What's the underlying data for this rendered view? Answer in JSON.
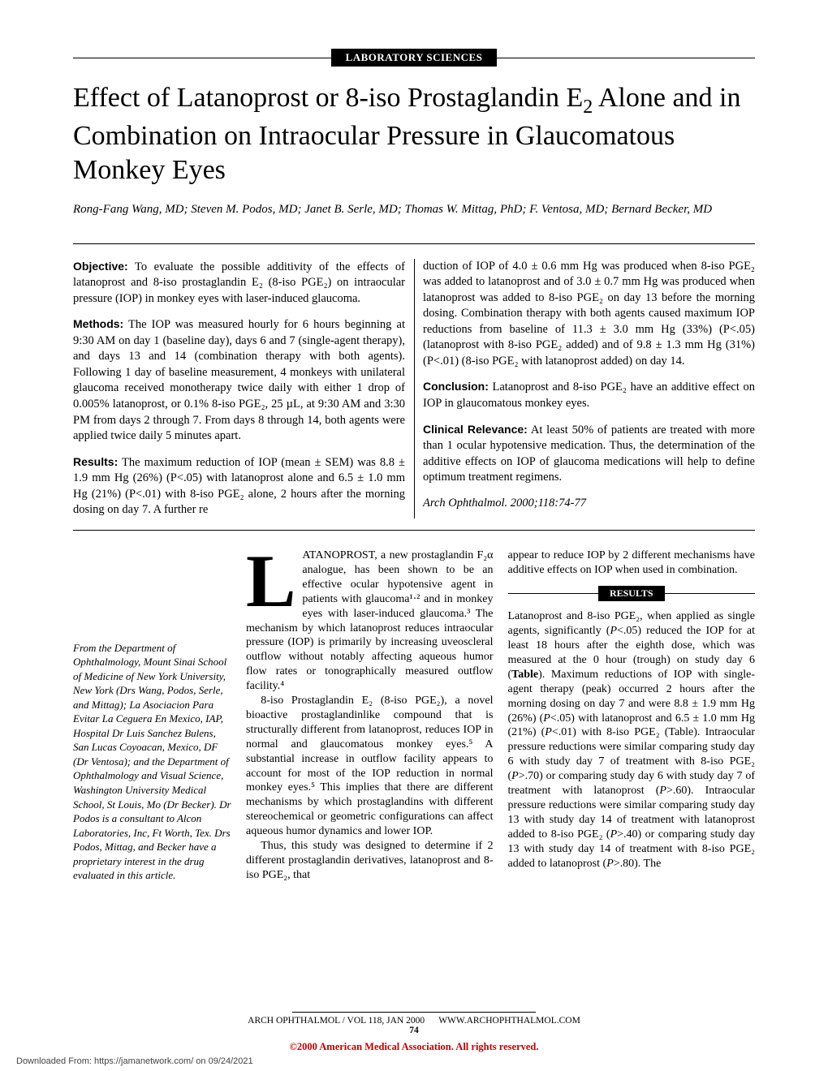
{
  "header_label": "LABORATORY SCIENCES",
  "title_html": "Effect of Latanoprost or 8-iso Prostaglandin E<sub>2</sub> Alone and in Combination on Intraocular Pressure in Glaucomatous Monkey Eyes",
  "authors": "Rong-Fang Wang, MD; Steven M. Podos, MD; Janet B. Serle, MD; Thomas W. Mittag, PhD; F. Ventosa, MD; Bernard Becker, MD",
  "abstract": {
    "objective_label": "Objective:",
    "objective_text": " To evaluate the possible additivity of the effects of latanoprost and 8-iso prostaglandin E₂ (8-iso PGE₂) on intraocular pressure (IOP) in monkey eyes with laser-induced glaucoma.",
    "methods_label": "Methods:",
    "methods_text": " The IOP was measured hourly for 6 hours beginning at 9:30 AM on day 1 (baseline day), days 6 and 7 (single-agent therapy), and days 13 and 14 (combination therapy with both agents). Following 1 day of baseline measurement, 4 monkeys with unilateral glaucoma received monotherapy twice daily with either 1 drop of 0.005% latanoprost, or 0.1% 8-iso PGE₂, 25 µL, at 9:30 AM and 3:30 PM from days 2 through 7. From days 8 through 14, both agents were applied twice daily 5 minutes apart.",
    "results_label": "Results:",
    "results_text_a": " The maximum reduction of IOP (mean ± SEM) was 8.8 ± 1.9 mm Hg (26%) (P<.05) with latanoprost alone and 6.5 ± 1.0 mm Hg (21%) (P<.01) with 8-iso PGE₂ alone, 2 hours after the morning dosing on day 7. A further re",
    "results_text_b": "duction of IOP of 4.0 ± 0.6 mm Hg was produced when 8-iso PGE₂ was added to latanoprost and of 3.0 ± 0.7 mm Hg was produced when latanoprost was added to 8-iso PGE₂ on day 13 before the morning dosing. Combination therapy with both agents caused maximum IOP reductions from baseline of 11.3 ± 3.0 mm Hg (33%) (P<.05) (latanoprost with 8-iso PGE₂ added) and of 9.8 ± 1.3 mm Hg (31%) (P<.01) (8-iso PGE₂ with latanoprost added) on day 14.",
    "conclusion_label": "Conclusion:",
    "conclusion_text": " Latanoprost and 8-iso PGE₂ have an additive effect on IOP in glaucomatous monkey eyes.",
    "relevance_label": "Clinical Relevance:",
    "relevance_text": " At least 50% of patients are treated with more than 1 ocular hypotensive medication. Thus, the determination of the additive effects on IOP of glaucoma medications will help to define optimum treatment regimens.",
    "citation": "Arch Ophthalmol. 2000;118:74-77"
  },
  "affiliation": "From the Department of Ophthalmology, Mount Sinai School of Medicine of New York University, New York (Drs Wang, Podos, Serle, and Mittag); La Asociacion Para Evitar La Ceguera En Mexico, IAP, Hospital Dr Luis Sanchez Bulens, San Lucas Coyoacan, Mexico, DF (Dr Ventosa); and the Department of Ophthalmology and Visual Science, Washington University Medical School, St Louis, Mo (Dr Becker). Dr Podos is a consultant to Alcon Laboratories, Inc, Ft Worth, Tex. Drs Podos, Mittag, and Becker have a proprietary interest in the drug evaluated in this article.",
  "body": {
    "dropcap": "L",
    "p1": "ATANOPROST, a new prostaglandin F₂α analogue, has been shown to be an effective ocular hypotensive agent in patients with glaucoma¹⋅² and in monkey eyes with laser-induced glaucoma.³ The mechanism by which latanoprost reduces intraocular pressure (IOP) is primarily by increasing uveoscleral outflow without notably affecting aqueous humor flow rates or tonographically measured outflow facility.⁴",
    "p2": "8-iso Prostaglandin E₂ (8-iso PGE₂), a novel bioactive prostaglandinlike compound that is structurally different from latanoprost, reduces IOP in normal and glaucomatous monkey eyes.⁵ A substantial increase in outflow facility appears to account for most of the IOP reduction in normal monkey eyes.⁵ This implies that there are different mechanisms by which prostaglandins with different stereochemical or geometric configurations can affect aqueous humor dynamics and lower IOP.",
    "p3": "Thus, this study was designed to determine if 2 different prostaglandin derivatives, latanoprost and 8-iso PGE₂, that",
    "col3_top": "appear to reduce IOP by 2 different mechanisms have additive effects on IOP when used in combination.",
    "results_header": "RESULTS",
    "results_p1_html": "Latanoprost and 8-iso PGE₂, when applied as single agents, significantly (<i>P</i>&lt;.05) reduced the IOP for at least 18 hours after the eighth dose, which was measured at the 0 hour (trough) on study day 6 (<b>Table</b>). Maximum reductions of IOP with single-agent therapy (peak) occurred 2 hours after the morning dosing on day 7 and were 8.8 ± 1.9 mm Hg (26%) (<i>P</i>&lt;.05) with latanoprost and 6.5 ± 1.0 mm Hg (21%) (<i>P</i>&lt;.01) with 8-iso PGE₂ (Table). Intraocular pressure reductions were similar comparing study day 6 with study day 7 of treatment with 8-iso PGE₂ (<i>P</i>&gt;.70) or comparing study day 6 with study day 7 of treatment with latanoprost (<i>P</i>&gt;.60). Intraocular pressure reductions were similar comparing study day 13 with study day 14 of treatment with latanoprost added to 8-iso PGE₂ (<i>P</i>&gt;.40) or comparing study day 13 with study day 14 of treatment with 8-iso PGE₂ added to latanoprost (<i>P</i>&gt;.80). The"
  },
  "footer": {
    "left": "ARCH OPHTHALMOL / VOL 118, JAN 2000",
    "right": "WWW.ARCHOPHTHALMOL.COM",
    "page": "74"
  },
  "copyright": "©2000 American Medical Association. All rights reserved.",
  "download": "Downloaded From: https://jamanetwork.com/ on 09/24/2021"
}
